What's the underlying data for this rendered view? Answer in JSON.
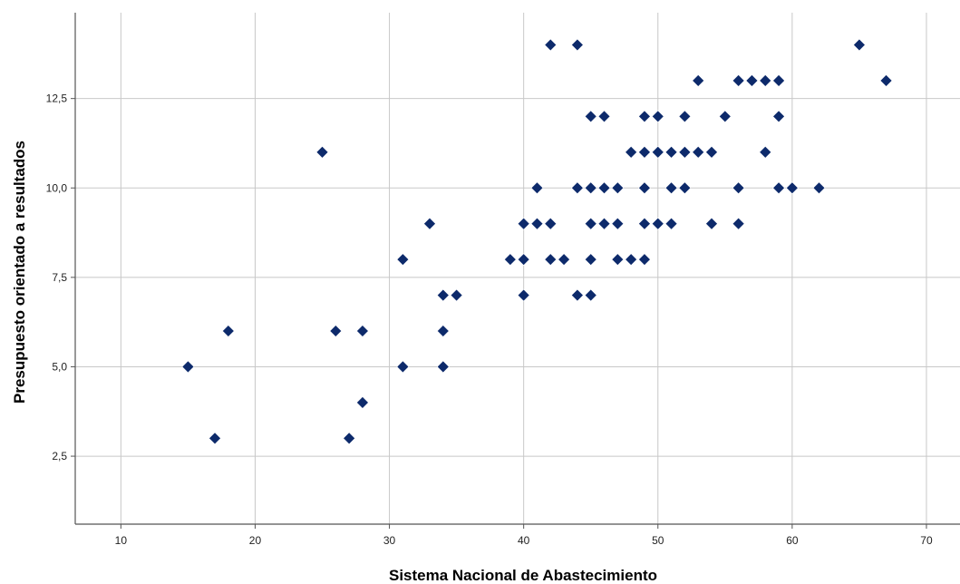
{
  "chart_data": {
    "type": "scatter",
    "xlabel": "Sistema Nacional de Abastecimiento",
    "ylabel": "Presupuesto orientado a resultados",
    "xlim": [
      6.6,
      72.5
    ],
    "ylim": [
      0.6,
      14.9
    ],
    "x_ticks": [
      10,
      20,
      30,
      40,
      50,
      60,
      70
    ],
    "x_tick_labels": [
      "10",
      "20",
      "30",
      "40",
      "50",
      "60",
      "70"
    ],
    "y_ticks": [
      2.5,
      5,
      7.5,
      10,
      12.5
    ],
    "y_tick_labels": [
      "2,5",
      "5,0",
      "7,5",
      "10,0",
      "12,5"
    ],
    "grid": true,
    "marker": "diamond",
    "colors": {
      "marker": "#0d2a6b",
      "grid": "#c8c8c8",
      "axis": "#555555"
    },
    "points": [
      [
        15,
        5
      ],
      [
        17,
        3
      ],
      [
        18,
        6
      ],
      [
        25,
        11
      ],
      [
        26,
        6
      ],
      [
        27,
        3
      ],
      [
        28,
        6
      ],
      [
        28,
        4
      ],
      [
        31,
        8
      ],
      [
        31,
        5
      ],
      [
        33,
        9
      ],
      [
        34,
        7
      ],
      [
        34,
        6
      ],
      [
        34,
        5
      ],
      [
        35,
        7
      ],
      [
        39,
        8
      ],
      [
        40,
        9
      ],
      [
        40,
        8
      ],
      [
        40,
        7
      ],
      [
        41,
        10
      ],
      [
        41,
        9
      ],
      [
        42,
        14
      ],
      [
        42,
        9
      ],
      [
        42,
        8
      ],
      [
        43,
        8
      ],
      [
        44,
        14
      ],
      [
        44,
        10
      ],
      [
        44,
        7
      ],
      [
        45,
        12
      ],
      [
        45,
        10
      ],
      [
        45,
        9
      ],
      [
        45,
        8
      ],
      [
        45,
        7
      ],
      [
        46,
        12
      ],
      [
        46,
        10
      ],
      [
        46,
        9
      ],
      [
        47,
        10
      ],
      [
        47,
        9
      ],
      [
        47,
        8
      ],
      [
        48,
        11
      ],
      [
        48,
        8
      ],
      [
        49,
        12
      ],
      [
        49,
        11
      ],
      [
        49,
        10
      ],
      [
        49,
        9
      ],
      [
        49,
        8
      ],
      [
        50,
        12
      ],
      [
        50,
        11
      ],
      [
        50,
        9
      ],
      [
        51,
        11
      ],
      [
        51,
        10
      ],
      [
        51,
        9
      ],
      [
        52,
        12
      ],
      [
        52,
        11
      ],
      [
        52,
        10
      ],
      [
        53,
        13
      ],
      [
        53,
        11
      ],
      [
        54,
        11
      ],
      [
        54,
        9
      ],
      [
        55,
        12
      ],
      [
        56,
        13
      ],
      [
        56,
        10
      ],
      [
        56,
        9
      ],
      [
        57,
        13
      ],
      [
        58,
        13
      ],
      [
        58,
        11
      ],
      [
        59,
        13
      ],
      [
        59,
        12
      ],
      [
        59,
        10
      ],
      [
        60,
        10
      ],
      [
        62,
        10
      ],
      [
        65,
        14
      ],
      [
        67,
        13
      ]
    ]
  }
}
